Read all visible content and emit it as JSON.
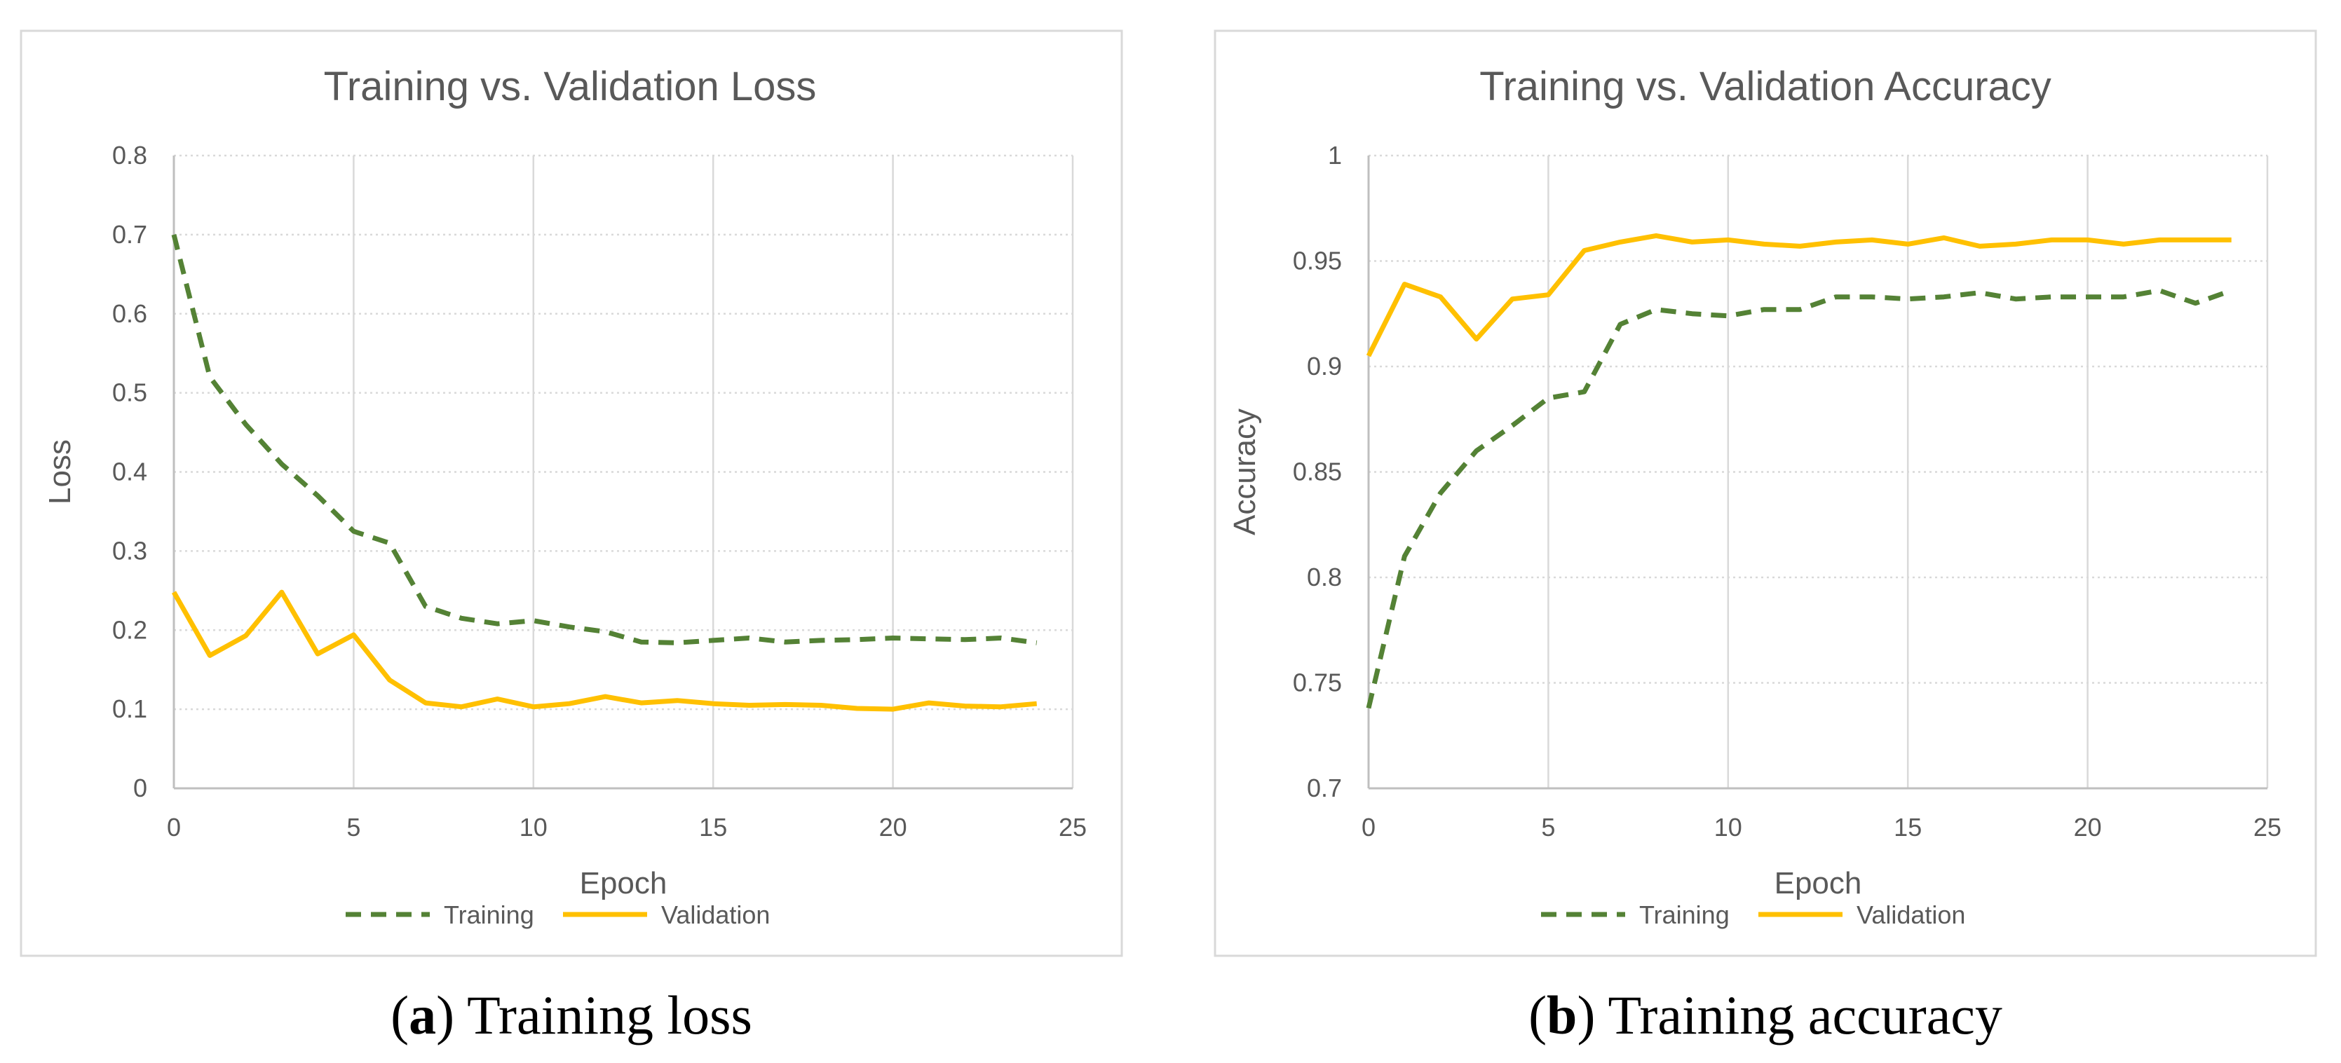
{
  "colors": {
    "training": "#548235",
    "validation": "#FFC000",
    "grid": "#D9D9D9",
    "text": "#595959",
    "border": "#D9D9D9"
  },
  "chart_data": [
    {
      "type": "line",
      "title": "Training vs. Validation Loss",
      "xlabel": "Epoch",
      "ylabel": "Loss",
      "xlim": [
        0,
        25
      ],
      "ylim": [
        0,
        0.8
      ],
      "xticks": [
        0,
        5,
        10,
        15,
        20,
        25
      ],
      "yticks": [
        0,
        0.1,
        0.2,
        0.3,
        0.4,
        0.5,
        0.6,
        0.7,
        0.8
      ],
      "xtick_labels": [
        "0",
        "5",
        "10",
        "15",
        "20",
        "25"
      ],
      "ytick_labels": [
        "0",
        "0.1",
        "0.2",
        "0.3",
        "0.4",
        "0.5",
        "0.6",
        "0.7",
        "0.8"
      ],
      "x": [
        0,
        1,
        2,
        3,
        4,
        5,
        6,
        7,
        8,
        9,
        10,
        11,
        12,
        13,
        14,
        15,
        16,
        17,
        18,
        19,
        20,
        21,
        22,
        23,
        24
      ],
      "series": [
        {
          "name": "Training",
          "style": "dashed",
          "values": [
            0.7,
            0.52,
            0.46,
            0.41,
            0.37,
            0.325,
            0.31,
            0.23,
            0.215,
            0.208,
            0.212,
            0.204,
            0.198,
            0.185,
            0.184,
            0.187,
            0.19,
            0.185,
            0.187,
            0.188,
            0.19,
            0.189,
            0.188,
            0.19,
            0.184
          ]
        },
        {
          "name": "Validation",
          "style": "solid",
          "values": [
            0.248,
            0.168,
            0.193,
            0.248,
            0.17,
            0.194,
            0.137,
            0.108,
            0.103,
            0.113,
            0.103,
            0.107,
            0.116,
            0.108,
            0.111,
            0.107,
            0.105,
            0.106,
            0.105,
            0.101,
            0.1,
            0.108,
            0.104,
            0.103,
            0.107
          ]
        }
      ],
      "legend": [
        "Training",
        "Validation"
      ],
      "legend_position": "bottom"
    },
    {
      "type": "line",
      "title": "Training vs. Validation Accuracy",
      "xlabel": "Epoch",
      "ylabel": "Accuracy",
      "xlim": [
        0,
        25
      ],
      "ylim": [
        0.7,
        1.0
      ],
      "xticks": [
        0,
        5,
        10,
        15,
        20,
        25
      ],
      "yticks": [
        0.7,
        0.75,
        0.8,
        0.85,
        0.9,
        0.95,
        1.0
      ],
      "xtick_labels": [
        "0",
        "5",
        "10",
        "15",
        "20",
        "25"
      ],
      "ytick_labels": [
        "0.7",
        "0.75",
        "0.8",
        "0.85",
        "0.9",
        "0.95",
        "1"
      ],
      "x": [
        0,
        1,
        2,
        3,
        4,
        5,
        6,
        7,
        8,
        9,
        10,
        11,
        12,
        13,
        14,
        15,
        16,
        17,
        18,
        19,
        20,
        21,
        22,
        23,
        24
      ],
      "series": [
        {
          "name": "Training",
          "style": "dashed",
          "values": [
            0.738,
            0.81,
            0.84,
            0.86,
            0.872,
            0.885,
            0.888,
            0.92,
            0.927,
            0.925,
            0.924,
            0.927,
            0.927,
            0.933,
            0.933,
            0.932,
            0.933,
            0.935,
            0.932,
            0.933,
            0.933,
            0.933,
            0.936,
            0.93,
            0.936
          ]
        },
        {
          "name": "Validation",
          "style": "solid",
          "values": [
            0.905,
            0.939,
            0.933,
            0.913,
            0.932,
            0.934,
            0.955,
            0.959,
            0.962,
            0.959,
            0.96,
            0.958,
            0.957,
            0.959,
            0.96,
            0.958,
            0.961,
            0.957,
            0.958,
            0.96,
            0.96,
            0.958,
            0.96,
            0.96,
            0.96
          ]
        }
      ],
      "legend": [
        "Training",
        "Validation"
      ],
      "legend_position": "bottom"
    }
  ],
  "captions": [
    {
      "letter": "a",
      "text": "Training loss"
    },
    {
      "letter": "b",
      "text": "Training accuracy"
    }
  ]
}
